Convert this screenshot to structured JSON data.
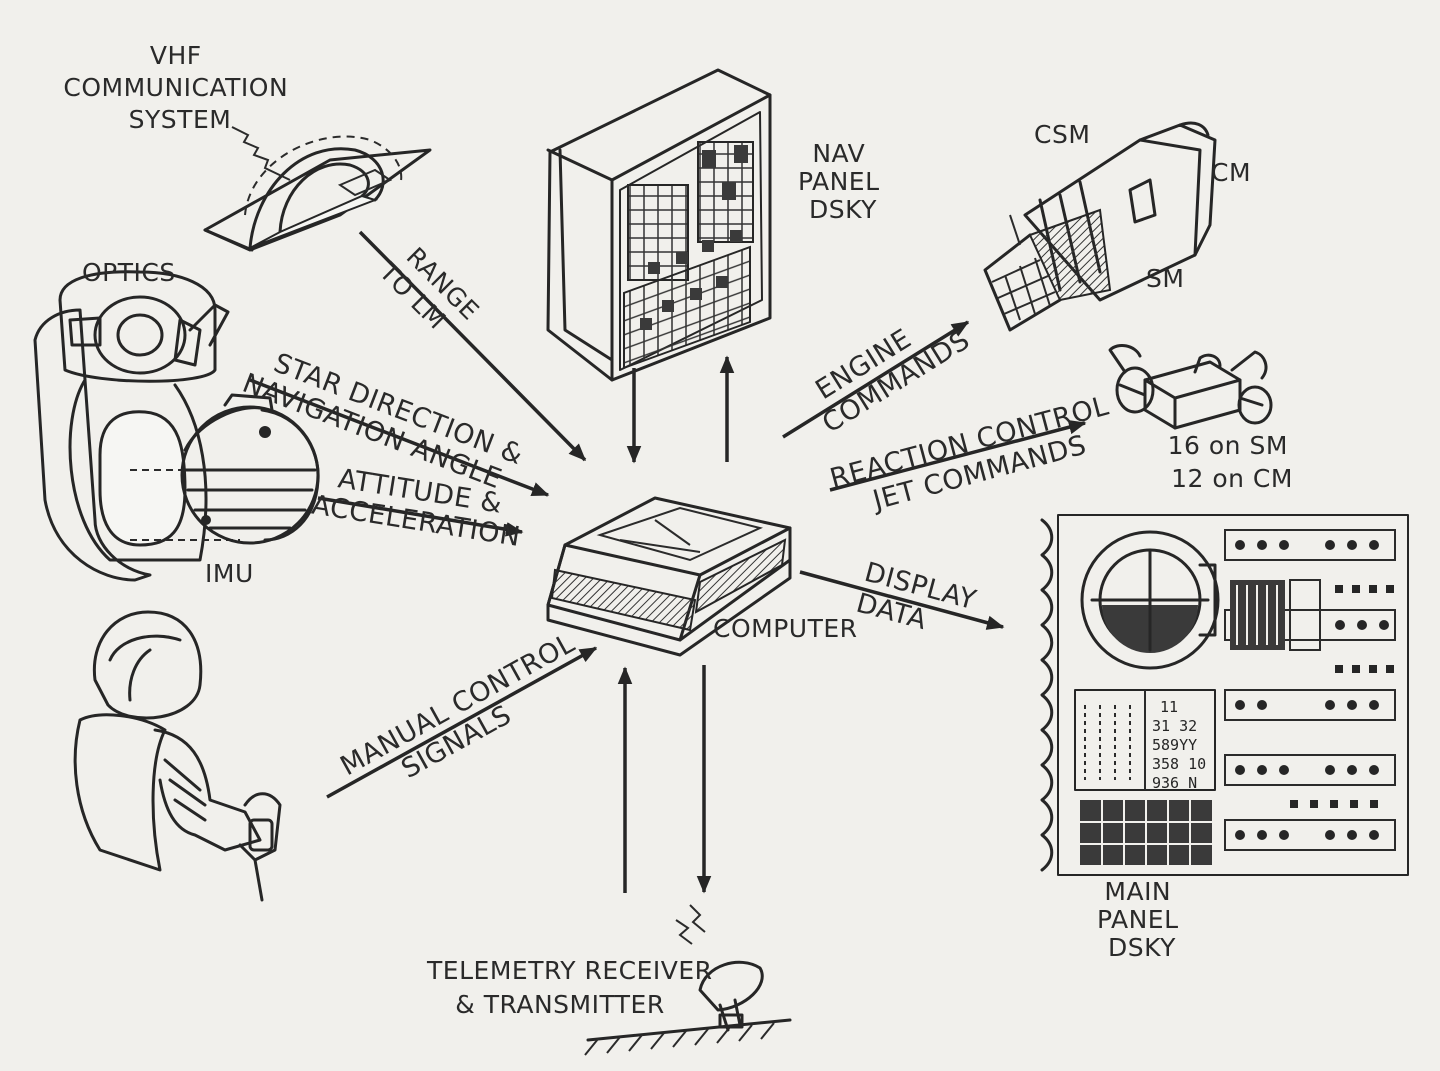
{
  "labels": {
    "vhf": [
      "VHF",
      "COMMUNICATION",
      "SYSTEM"
    ],
    "optics": "OPTICS",
    "imu": "IMU",
    "nav_panel": [
      "NAV",
      "PANEL",
      "DSKY"
    ],
    "csm": "CSM",
    "cm": "CM",
    "sm": "SM",
    "rcs_counts": [
      "16 on SM",
      "12 on CM"
    ],
    "computer": "COMPUTER",
    "main_panel": [
      "MAIN",
      "PANEL",
      "DSKY"
    ],
    "telemetry": [
      "TELEMETRY RECEIVER",
      "& TRANSMITTER"
    ]
  },
  "arrows": {
    "range": [
      "RANGE",
      "TO LM"
    ],
    "star": [
      "STAR DIRECTION &",
      "NAVIGATION ANGLE"
    ],
    "attitude": [
      "ATTITUDE &",
      "ACCELERATION"
    ],
    "manual": [
      "MANUAL CONTROL",
      "SIGNALS"
    ],
    "engine": [
      "ENGINE",
      "COMMANDS"
    ],
    "reaction": [
      "REACTION CONTROL",
      "JET COMMANDS"
    ],
    "display": [
      "DISPLAY",
      "DATA"
    ]
  },
  "dsky_readout": [
    "11",
    "31 32",
    "589YY",
    "358 10",
    "936 N"
  ]
}
